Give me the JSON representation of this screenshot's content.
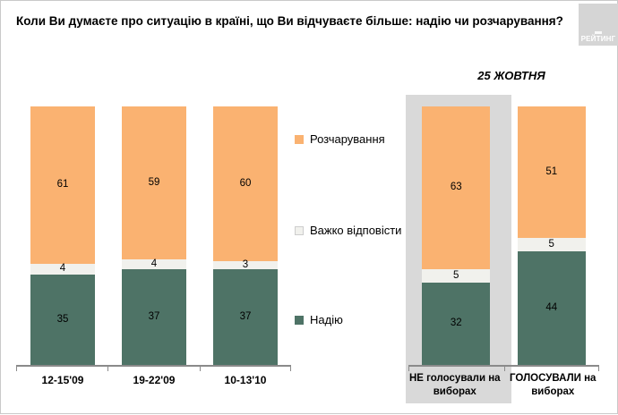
{
  "title": "Коли Ви думаєте про ситуацію в країні, що Ви відчуваєте більше: надію чи розчарування?",
  "logo": {
    "text": "РЕЙТИНГ"
  },
  "annotation": "25 ЖОВТНЯ",
  "legend": [
    {
      "key": "rozcharuvannia",
      "label": "Розчарування",
      "color": "#FAB271"
    },
    {
      "key": "vazhko-vidpovisty",
      "label": "Важко відповісти",
      "color": "#F1F1ED"
    },
    {
      "key": "nadiiu",
      "label": "Надію",
      "color": "#4E7366"
    }
  ],
  "colors": {
    "disappointment": "#FAB271",
    "hard_to_say": "#F1F1ED",
    "hope": "#4E7366",
    "highlight_box": "#D9D9D9",
    "axis": "#8A8A8A",
    "logo_background": "#D5D5D5"
  },
  "chart_data": {
    "type": "bar",
    "stacked": true,
    "unit": "percent",
    "ylim": [
      0,
      100
    ],
    "title": "Коли Ви думаєте про ситуацію в країні, що Ви відчуваєте більше: надію чи розчарування?",
    "legend_position": "center-between-groups",
    "series_order_top_to_bottom": [
      "Розчарування",
      "Важко відповісти",
      "Надію"
    ],
    "groups": [
      {
        "name": "waves",
        "categories": [
          "12-15'09",
          "19-22'09",
          "10-13'10"
        ],
        "series": [
          {
            "name": "Розчарування",
            "values": [
              61,
              59,
              60
            ]
          },
          {
            "name": "Важко відповісти",
            "values": [
              4,
              4,
              3
            ]
          },
          {
            "name": "Надію",
            "values": [
              35,
              37,
              37
            ]
          }
        ]
      },
      {
        "name": "25-zhovtnia",
        "annotation": "25 ЖОВТНЯ",
        "highlighted_category": "НЕ голосували на виборах",
        "categories": [
          "НЕ голосували на виборах",
          "ГОЛОСУВАЛИ на виборах"
        ],
        "series": [
          {
            "name": "Розчарування",
            "values": [
              63,
              51
            ]
          },
          {
            "name": "Важко відповісти",
            "values": [
              5,
              5
            ]
          },
          {
            "name": "Надію",
            "values": [
              32,
              44
            ]
          }
        ]
      }
    ]
  }
}
